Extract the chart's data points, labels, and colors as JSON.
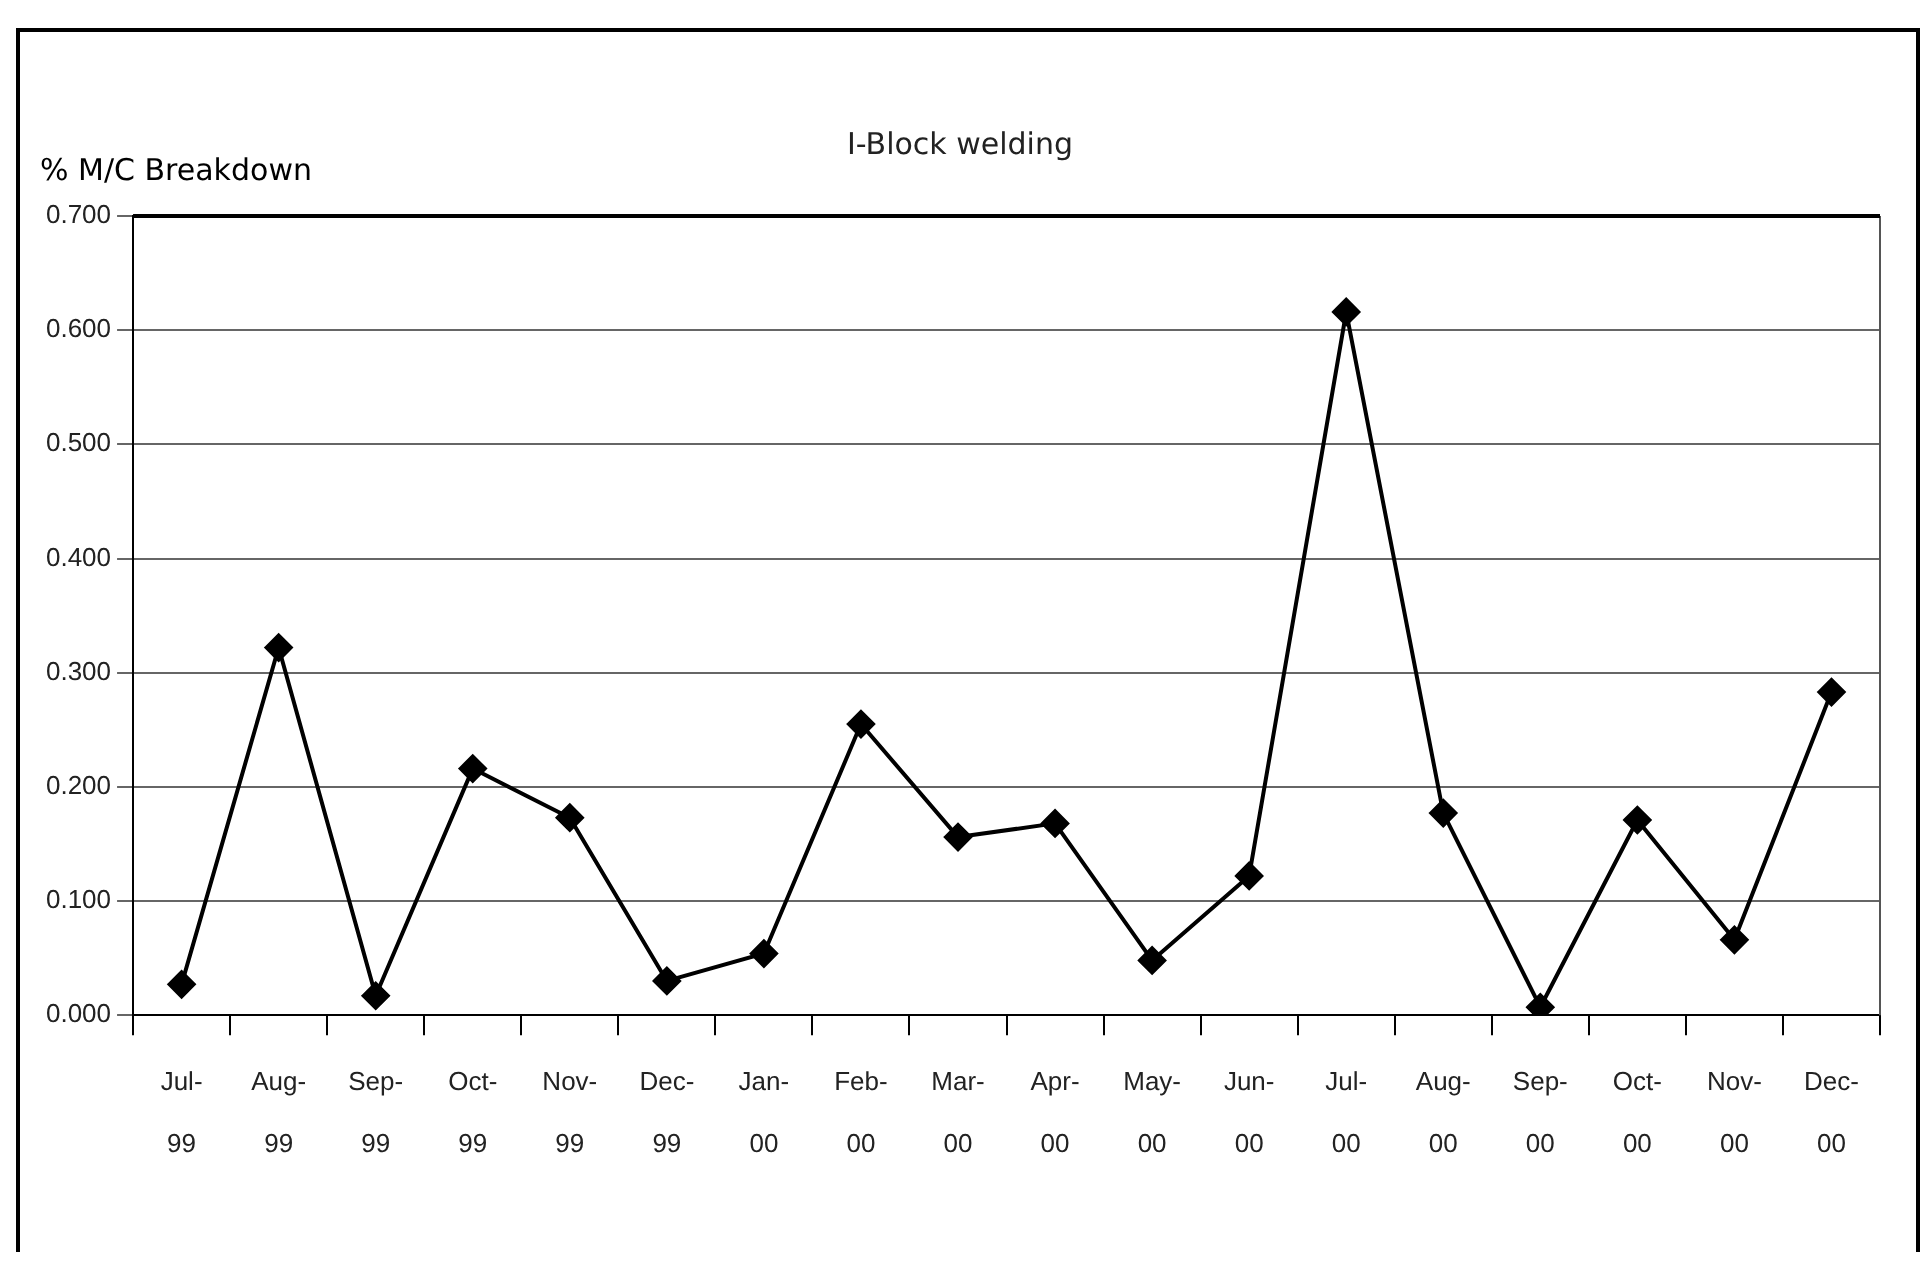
{
  "chart_data": {
    "type": "line",
    "title": "I-Block welding",
    "ylabel": "% M/C Breakdown",
    "categories": [
      "Jul-99",
      "Aug-99",
      "Sep-99",
      "Oct-99",
      "Nov-99",
      "Dec-99",
      "Jan-00",
      "Feb-00",
      "Mar-00",
      "Apr-00",
      "May-00",
      "Jun-00",
      "Jul-00",
      "Aug-00",
      "Sep-00",
      "Oct-00",
      "Nov-00",
      "Dec-00"
    ],
    "series": [
      {
        "color": "#000000",
        "values": [
          0.027,
          0.322,
          0.017,
          0.216,
          0.173,
          0.03,
          0.054,
          0.255,
          0.156,
          0.168,
          0.048,
          0.122,
          0.616,
          0.177,
          0.007,
          0.171,
          0.066,
          0.283
        ]
      }
    ],
    "ylim": [
      0,
      0.7
    ],
    "yticks": [
      {
        "value": 0,
        "label": "0.000"
      },
      {
        "value": 0.1,
        "label": "0.100"
      },
      {
        "value": 0.2,
        "label": "0.200"
      },
      {
        "value": 0.3,
        "label": "0.300"
      },
      {
        "value": 0.4,
        "label": "0.400"
      },
      {
        "value": 0.5,
        "label": "0.500"
      },
      {
        "value": 0.6,
        "label": "0.600"
      },
      {
        "value": 0.7,
        "label": "0.700"
      }
    ],
    "grid": "y",
    "legend": false,
    "marker": "diamond",
    "line_style": "solid"
  }
}
